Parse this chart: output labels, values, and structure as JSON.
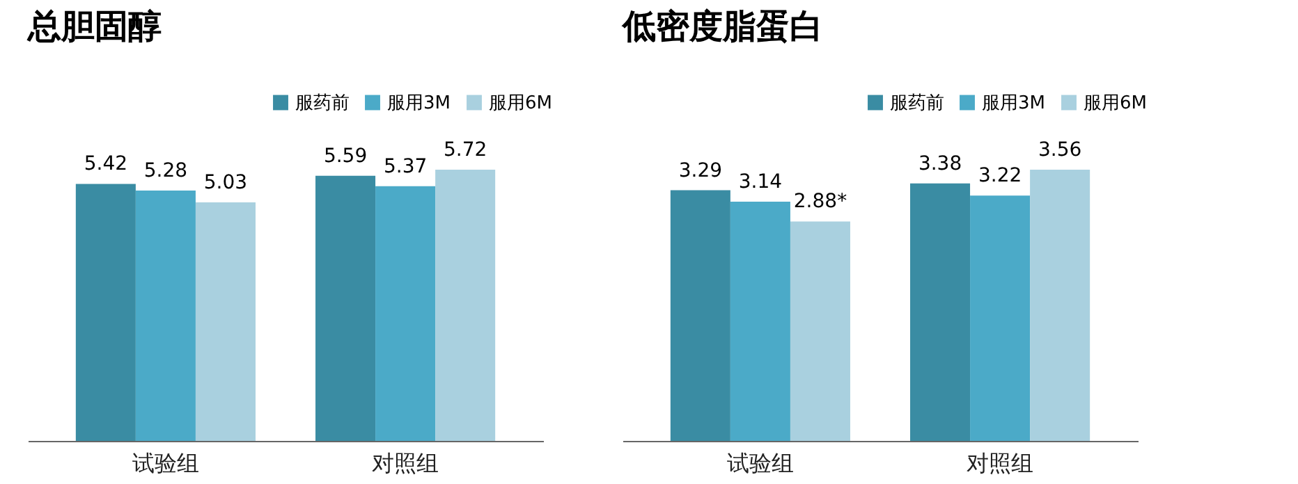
{
  "chart_data": [
    {
      "type": "bar",
      "title": "总胆固醇",
      "categories": [
        "试验组",
        "对照组"
      ],
      "series": [
        {
          "name": "服药前",
          "color": "#3a8ca3",
          "values": [
            5.42,
            5.59
          ]
        },
        {
          "name": "服用3M",
          "color": "#4baac8",
          "values": [
            5.28,
            5.37
          ]
        },
        {
          "name": "服用6M",
          "color": "#a9d0df",
          "values": [
            5.03,
            5.72
          ]
        }
      ],
      "data_labels": true,
      "legend": "top right"
    },
    {
      "type": "bar",
      "title": "低密度脂蛋白",
      "categories": [
        "试验组",
        "对照组"
      ],
      "series": [
        {
          "name": "服药前",
          "color": "#3a8ca3",
          "values": [
            3.29,
            3.38
          ],
          "value_labels": [
            "3.29",
            "3.38"
          ]
        },
        {
          "name": "服用3M",
          "color": "#4baac8",
          "values": [
            3.14,
            3.22
          ],
          "value_labels": [
            "3.14",
            "3.22"
          ]
        },
        {
          "name": "服用6M",
          "color": "#a9d0df",
          "values": [
            2.88,
            3.56
          ],
          "value_labels": [
            "2.88*",
            "3.56"
          ]
        }
      ],
      "legend": "top right"
    }
  ]
}
